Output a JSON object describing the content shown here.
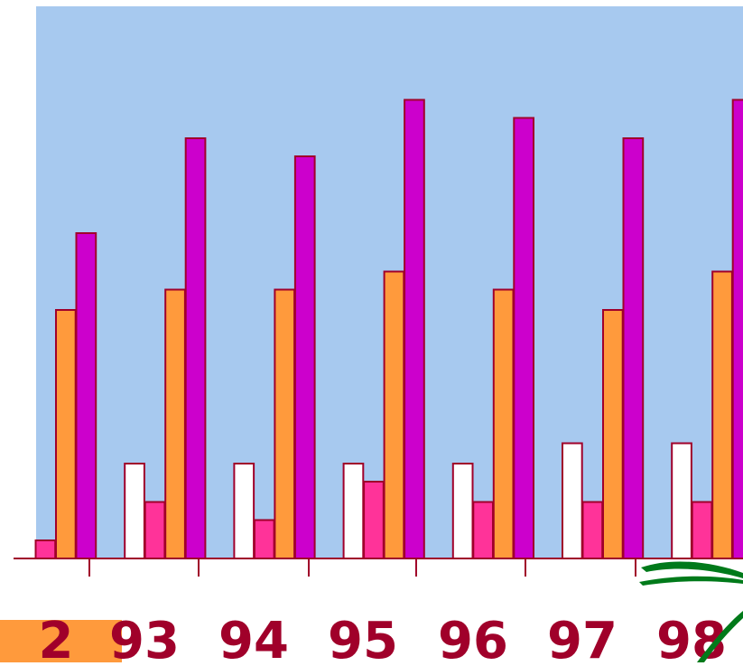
{
  "colors": {
    "plot_background": "#a7c9ef",
    "bar_stroke": "#a0002a",
    "tick_label": "#a0002a",
    "axis": "#a0002a",
    "decoration_orange": "#ff9a3c",
    "decoration_green": "#007a1a"
  },
  "chart_data": {
    "type": "bar",
    "title": "",
    "xlabel": "",
    "ylabel": "",
    "categories": [
      "2",
      "93",
      "94",
      "95",
      "96",
      "97",
      "98"
    ],
    "ylim": [
      0,
      100
    ],
    "grid": false,
    "legend": "none",
    "series": [
      {
        "color": "#ffffff",
        "values": [
          null,
          21,
          21,
          21,
          21,
          25.5,
          25.5
        ]
      },
      {
        "color": "#ff3399",
        "values": [
          4,
          12.5,
          8.5,
          17,
          12.5,
          12.5,
          12.5
        ]
      },
      {
        "color": "#ff9a3c",
        "values": [
          55,
          59.5,
          59.5,
          63.5,
          59.5,
          55,
          63.5
        ]
      },
      {
        "color": "#cc00cc",
        "values": [
          72,
          93,
          89,
          101.5,
          97.5,
          93,
          101.5
        ]
      }
    ]
  }
}
